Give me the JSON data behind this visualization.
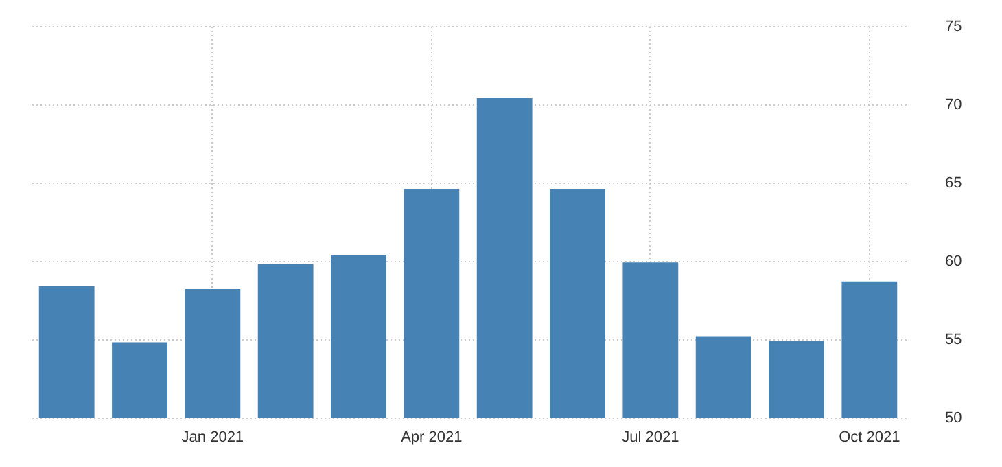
{
  "chart_data": {
    "type": "bar",
    "categories": [
      null,
      null,
      "Jan 2021",
      null,
      null,
      "Apr 2021",
      null,
      null,
      "Jul 2021",
      null,
      null,
      "Oct 2021"
    ],
    "values": [
      58.4,
      54.8,
      58.2,
      59.8,
      60.4,
      64.6,
      70.4,
      64.6,
      59.9,
      55.2,
      54.9,
      58.7
    ],
    "color": "#4682b4",
    "ylim": [
      50,
      75
    ],
    "yticks": [
      50,
      55,
      60,
      65,
      70,
      75
    ],
    "grid": true
  }
}
